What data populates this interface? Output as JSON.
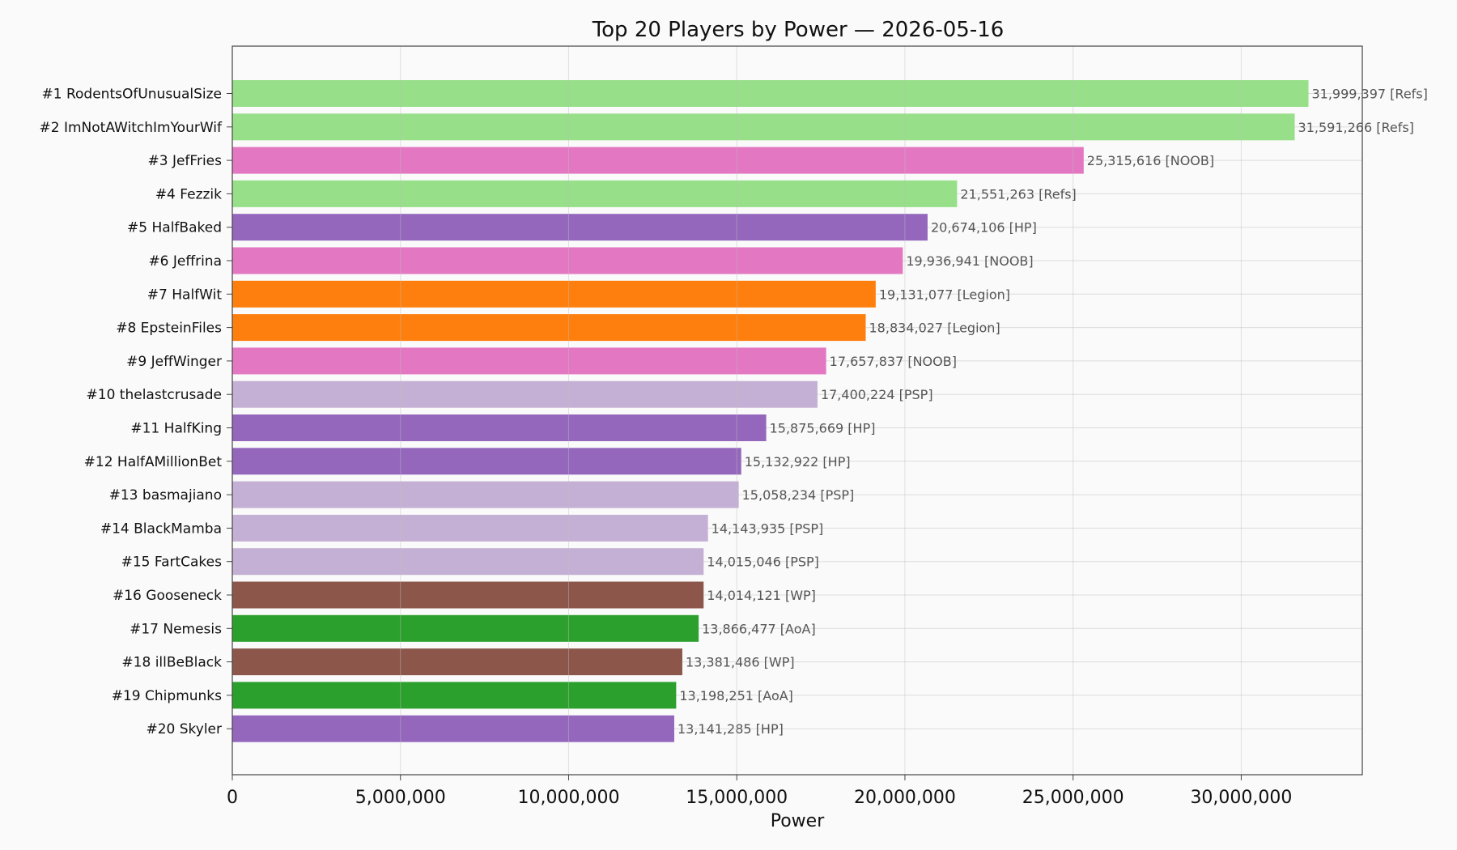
{
  "chart_data": {
    "type": "bar",
    "orientation": "horizontal",
    "title": "Top 20 Players by Power — 2026-05-16",
    "xlabel": "Power",
    "ylabel": "",
    "xlim": [
      0,
      33600000
    ],
    "xticks": [
      0,
      5000000,
      10000000,
      15000000,
      20000000,
      25000000,
      30000000
    ],
    "xtick_labels": [
      "0",
      "5,000,000",
      "10,000,000",
      "15,000,000",
      "20,000,000",
      "25,000,000",
      "30,000,000"
    ],
    "grid": true,
    "categories": [
      "#1 RodentsOfUnusualSize",
      "#2 ImNotAWitchImYourWif",
      "#3 JefFries",
      "#4 Fezzik",
      "#5 HalfBaked",
      "#6 Jeffrina",
      "#7 HalfWit",
      "#8 EpsteinFiles",
      "#9 JeffWinger",
      "#10 thelastcrusade",
      "#11 HalfKing",
      "#12 HalfAMillionBet",
      "#13 basmajiano",
      "#14 BlackMamba",
      "#15 FartCakes",
      "#16 Gooseneck",
      "#17 Nemesis",
      "#18 illBeBlack",
      "#19 Chipmunks",
      "#20 Skyler"
    ],
    "values": [
      31999397,
      31591266,
      25315616,
      21551263,
      20674106,
      19936941,
      19131077,
      18834027,
      17657837,
      17400224,
      15875669,
      15132922,
      15058234,
      14143935,
      14015046,
      14014121,
      13866477,
      13381486,
      13198251,
      13141285
    ],
    "value_labels": [
      "31,999,397  [Refs]",
      "31,591,266  [Refs]",
      "25,315,616  [NOOB]",
      "21,551,263  [Refs]",
      "20,674,106  [HP]",
      "19,936,941  [NOOB]",
      "19,131,077  [Legion]",
      "18,834,027  [Legion]",
      "17,657,837  [NOOB]",
      "17,400,224  [PSP]",
      "15,875,669  [HP]",
      "15,132,922  [HP]",
      "15,058,234  [PSP]",
      "14,143,935  [PSP]",
      "14,015,046  [PSP]",
      "14,014,121  [WP]",
      "13,866,477  [AoA]",
      "13,381,486  [WP]",
      "13,198,251  [AoA]",
      "13,141,285  [HP]"
    ],
    "groups": [
      "Refs",
      "Refs",
      "NOOB",
      "Refs",
      "HP",
      "NOOB",
      "Legion",
      "Legion",
      "NOOB",
      "PSP",
      "HP",
      "HP",
      "PSP",
      "PSP",
      "PSP",
      "WP",
      "AoA",
      "WP",
      "AoA",
      "HP"
    ],
    "group_colors": {
      "Refs": "#98df8a",
      "NOOB": "#e377c2",
      "HP": "#9467bd",
      "Legion": "#ff7f0e",
      "PSP": "#c5b0d5",
      "WP": "#8c564b",
      "AoA": "#2ca02c"
    }
  }
}
